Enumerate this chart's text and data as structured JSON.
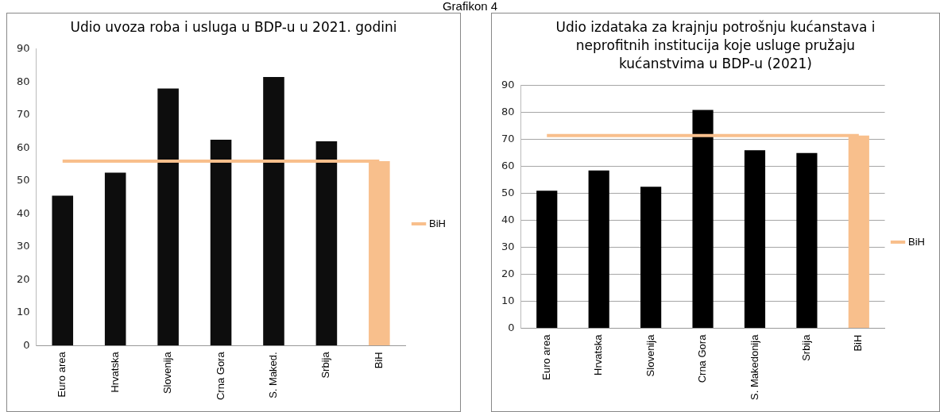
{
  "chart_data": [
    {
      "type": "bar",
      "title": "Udio uvoza roba i usluga u BDP-u u 2021. godini",
      "annotations": [
        "Grafikon 4"
      ],
      "categories": [
        "Euro area",
        "Hrvatska",
        "Slovenija",
        "Crna Gora",
        "S. Maked.",
        "Srbija",
        "BiH"
      ],
      "series": [
        {
          "type": "bar",
          "colors": [
            "#0d0d0d",
            "#0d0d0d",
            "#0d0d0d",
            "#0d0d0d",
            "#0d0d0d",
            "#0d0d0d",
            "#f8bf8c"
          ],
          "values": [
            45.5,
            52.5,
            78,
            62.5,
            81.5,
            62,
            56
          ]
        },
        {
          "type": "line",
          "name": "BiH",
          "color": "#f8bf8c",
          "values": [
            56,
            56,
            56,
            56,
            56,
            56,
            56
          ]
        }
      ],
      "ylim": [
        0,
        90
      ],
      "yticks": [
        0,
        10,
        20,
        30,
        40,
        50,
        60,
        70,
        80,
        90
      ],
      "grid": false,
      "legend": "right",
      "marker": "none"
    },
    {
      "type": "bar",
      "title": "Udio izdataka za krajnju potrošnju kućanstava i neprofitnih institucija koje usluge pružaju kućanstvima u BDP-u (2021)",
      "categories": [
        "Euro area",
        "Hrvatska",
        "Slovenija",
        "Crna Gora",
        "S. Makedonija",
        "Srbija",
        "BiH"
      ],
      "series": [
        {
          "type": "bar",
          "colors": [
            "#000000",
            "#000000",
            "#000000",
            "#000000",
            "#000000",
            "#000000",
            "#f8bf8c"
          ],
          "values": [
            51,
            58.5,
            52.5,
            81,
            66,
            65,
            71.5
          ]
        },
        {
          "type": "line",
          "name": "BiH",
          "color": "#f8bf8c",
          "values": [
            71.5,
            71.5,
            71.5,
            71.5,
            71.5,
            71.5,
            71.5
          ]
        }
      ],
      "ylim": [
        0,
        90
      ],
      "yticks": [
        0,
        10,
        20,
        30,
        40,
        50,
        60,
        70,
        80,
        90
      ],
      "grid": "y",
      "legend": "right",
      "marker": "none"
    }
  ]
}
